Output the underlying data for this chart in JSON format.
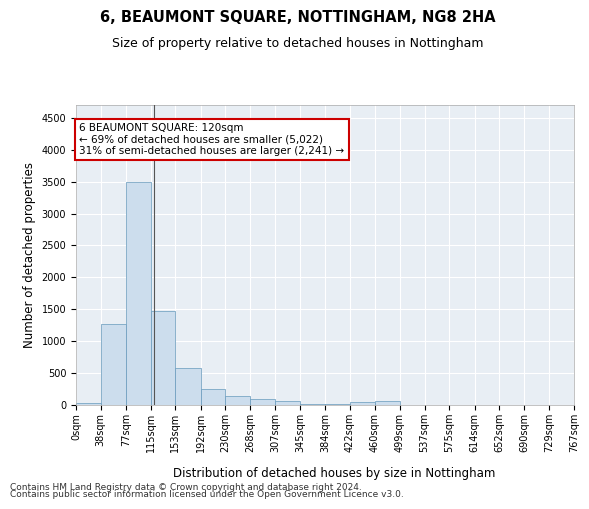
{
  "title": "6, BEAUMONT SQUARE, NOTTINGHAM, NG8 2HA",
  "subtitle": "Size of property relative to detached houses in Nottingham",
  "xlabel": "Distribution of detached houses by size in Nottingham",
  "ylabel": "Number of detached properties",
  "bin_edges": [
    0,
    38,
    77,
    115,
    153,
    192,
    230,
    268,
    307,
    345,
    384,
    422,
    460,
    499,
    537,
    575,
    614,
    652,
    690,
    729,
    767
  ],
  "bar_heights": [
    30,
    1270,
    3500,
    1470,
    580,
    250,
    140,
    90,
    55,
    20,
    15,
    50,
    55,
    2,
    2,
    2,
    2,
    2,
    2,
    2
  ],
  "bar_color": "#ccdded",
  "bar_edge_color": "#6699bb",
  "property_size": 120,
  "annotation_text": "6 BEAUMONT SQUARE: 120sqm\n← 69% of detached houses are smaller (5,022)\n31% of semi-detached houses are larger (2,241) →",
  "annotation_box_facecolor": "#ffffff",
  "annotation_box_edgecolor": "#cc0000",
  "vline_color": "#555555",
  "ylim": [
    0,
    4700
  ],
  "yticks": [
    0,
    500,
    1000,
    1500,
    2000,
    2500,
    3000,
    3500,
    4000,
    4500
  ],
  "tick_labels": [
    "0sqm",
    "38sqm",
    "77sqm",
    "115sqm",
    "153sqm",
    "192sqm",
    "230sqm",
    "268sqm",
    "307sqm",
    "345sqm",
    "384sqm",
    "422sqm",
    "460sqm",
    "499sqm",
    "537sqm",
    "575sqm",
    "614sqm",
    "652sqm",
    "690sqm",
    "729sqm",
    "767sqm"
  ],
  "footer_line1": "Contains HM Land Registry data © Crown copyright and database right 2024.",
  "footer_line2": "Contains public sector information licensed under the Open Government Licence v3.0.",
  "plot_bg_color": "#e8eef4",
  "fig_bg_color": "#ffffff",
  "grid_color": "#ffffff",
  "title_fontsize": 10.5,
  "subtitle_fontsize": 9,
  "axis_label_fontsize": 8.5,
  "tick_fontsize": 7,
  "annotation_fontsize": 7.5,
  "footer_fontsize": 6.5
}
